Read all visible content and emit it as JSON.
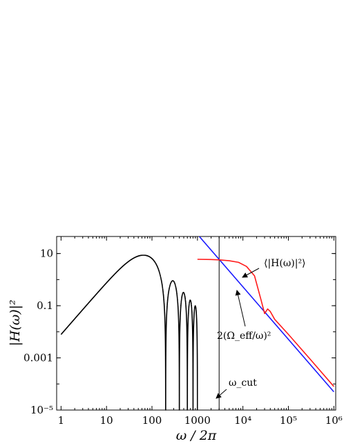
{
  "chart_data": {
    "type": "line",
    "x_scale": "log",
    "y_scale": "log",
    "xlim": [
      0.8,
      1100000
    ],
    "ylim": [
      1e-05,
      45
    ],
    "xlabel": "ω / 2π",
    "ylabel": "|H(ω)|²",
    "x_ticks": [
      {
        "value": 1,
        "label": "1"
      },
      {
        "value": 10,
        "label": "10"
      },
      {
        "value": 100,
        "label": "100"
      },
      {
        "value": 1000,
        "label": "1000"
      },
      {
        "value": 10000,
        "label": "10⁴"
      },
      {
        "value": 100000,
        "label": "10⁵"
      },
      {
        "value": 1000000,
        "label": "10⁶"
      }
    ],
    "y_ticks": [
      {
        "value": 10,
        "label": "10"
      },
      {
        "value": 0.1,
        "label": "0.1"
      },
      {
        "value": 0.001,
        "label": "0.001"
      },
      {
        "value": 1e-05,
        "label": "10⁻⁵"
      }
    ],
    "series": [
      {
        "name": "|H(ω)|²",
        "color": "#000000",
        "x_range": [
          1,
          1000
        ],
        "peak": 16,
        "peak_at": 50
      },
      {
        "name": "⟨|H(ω)|²⟩",
        "color": "#ff1a1a",
        "x": [
          1000,
          2000,
          3000,
          5000,
          8000,
          12000,
          18000,
          25000,
          30000,
          35000,
          40000,
          50000,
          100000,
          300000,
          1000000
        ],
        "y": [
          6,
          5.9,
          5.7,
          5.3,
          4.6,
          3.2,
          1.4,
          0.17,
          0.05,
          0.075,
          0.06,
          0.03,
          0.008,
          0.0009,
          8e-05
        ]
      },
      {
        "name": "2(Ω_eff/ω)²",
        "color": "#1a1aff",
        "x": [
          1100,
          1000000
        ],
        "y": [
          45,
          5e-05
        ]
      }
    ],
    "vertical_lines": [
      {
        "x": 3000,
        "color": "#000000"
      }
    ],
    "annotations": [
      {
        "label": "⟨|H(ω)|²⟩"
      },
      {
        "label": "2(Ω_eff/ω)²"
      },
      {
        "label": "ω_cut"
      }
    ]
  }
}
